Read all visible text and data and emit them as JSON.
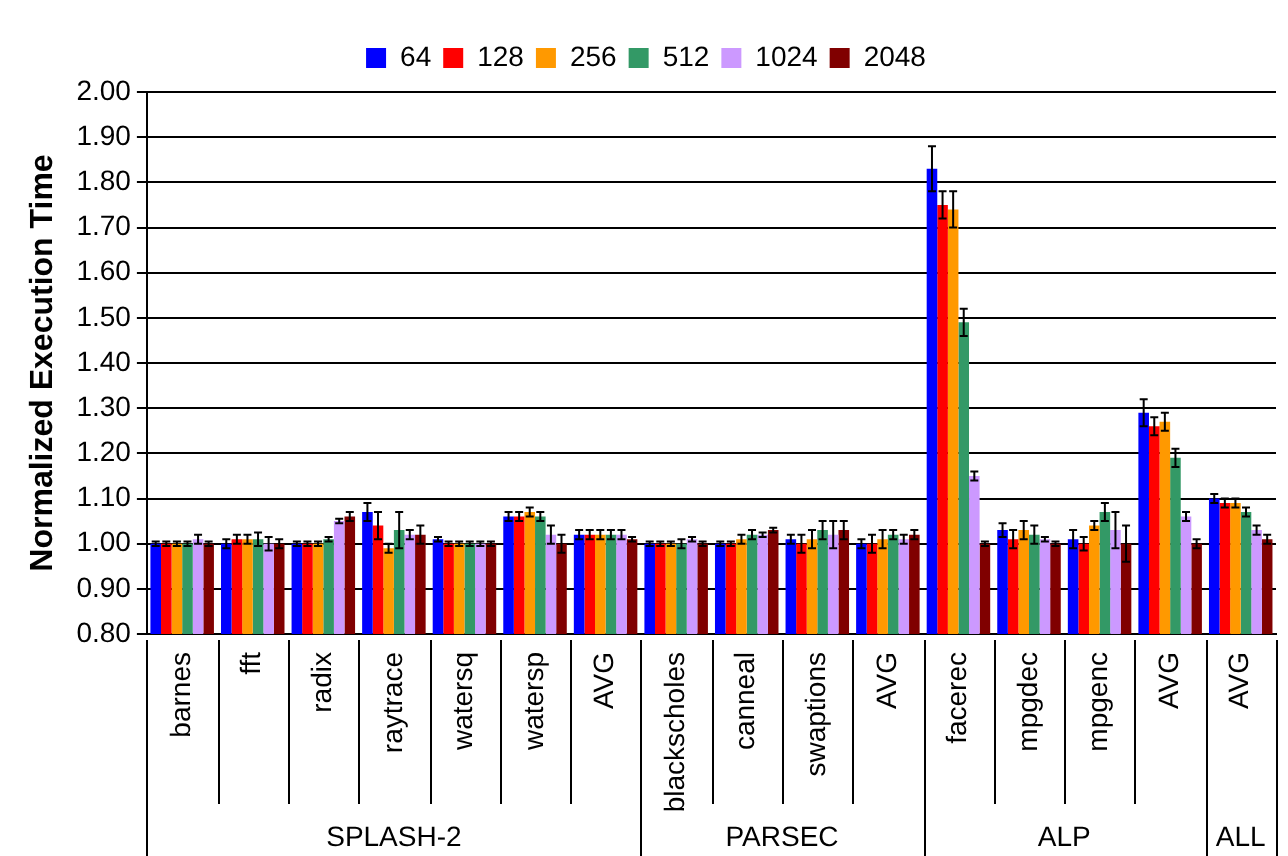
{
  "chart_data": {
    "type": "bar",
    "ylabel": "Normalized Execution Time",
    "categories": [
      "barnes",
      "fft",
      "radix",
      "raytrace",
      "watersq",
      "watersp",
      "AVG",
      "blackscholes",
      "canneal",
      "swaptions",
      "AVG",
      "facerec",
      "mpgdec",
      "mpgenc",
      "AVG",
      "AVG"
    ],
    "series": [
      {
        "name": "64",
        "color": "#0000ff",
        "values": [
          1.0,
          1.0,
          1.0,
          1.07,
          1.01,
          1.06,
          1.02,
          1.0,
          1.0,
          1.01,
          1.0,
          1.83,
          1.03,
          1.01,
          1.29,
          1.1
        ],
        "errors": [
          0.005,
          0.01,
          0.005,
          0.02,
          0.005,
          0.01,
          0.01,
          0.005,
          0.005,
          0.01,
          0.01,
          0.05,
          0.015,
          0.02,
          0.03,
          0.01
        ]
      },
      {
        "name": "128",
        "color": "#ff0000",
        "values": [
          1.0,
          1.01,
          1.0,
          1.04,
          1.0,
          1.06,
          1.02,
          1.0,
          1.0,
          1.0,
          1.0,
          1.75,
          1.01,
          1.0,
          1.26,
          1.09
        ],
        "errors": [
          0.005,
          0.01,
          0.005,
          0.03,
          0.005,
          0.01,
          0.01,
          0.005,
          0.005,
          0.02,
          0.02,
          0.03,
          0.02,
          0.015,
          0.02,
          0.01
        ]
      },
      {
        "name": "256",
        "color": "#ff9900",
        "values": [
          1.0,
          1.01,
          1.0,
          0.99,
          1.0,
          1.07,
          1.02,
          1.0,
          1.01,
          1.01,
          1.01,
          1.74,
          1.03,
          1.04,
          1.27,
          1.09
        ],
        "errors": [
          0.005,
          0.01,
          0.005,
          0.01,
          0.005,
          0.01,
          0.01,
          0.005,
          0.01,
          0.02,
          0.02,
          0.04,
          0.02,
          0.01,
          0.02,
          0.01
        ]
      },
      {
        "name": "512",
        "color": "#339966",
        "values": [
          1.0,
          1.01,
          1.01,
          1.03,
          1.0,
          1.06,
          1.02,
          1.0,
          1.02,
          1.03,
          1.02,
          1.49,
          1.02,
          1.07,
          1.19,
          1.07
        ],
        "errors": [
          0.005,
          0.015,
          0.005,
          0.04,
          0.005,
          0.01,
          0.01,
          0.01,
          0.01,
          0.02,
          0.01,
          0.03,
          0.02,
          0.02,
          0.02,
          0.01
        ]
      },
      {
        "name": "1024",
        "color": "#cc99ff",
        "values": [
          1.01,
          1.0,
          1.05,
          1.02,
          1.0,
          1.02,
          1.02,
          1.01,
          1.02,
          1.02,
          1.01,
          1.15,
          1.01,
          1.03,
          1.06,
          1.03
        ],
        "errors": [
          0.01,
          0.015,
          0.005,
          0.01,
          0.005,
          0.02,
          0.01,
          0.005,
          0.005,
          0.03,
          0.01,
          0.01,
          0.005,
          0.04,
          0.01,
          0.01
        ]
      },
      {
        "name": "2048",
        "color": "#800000",
        "values": [
          1.0,
          1.0,
          1.06,
          1.02,
          1.0,
          1.0,
          1.01,
          1.0,
          1.03,
          1.03,
          1.02,
          1.0,
          1.0,
          1.0,
          1.0,
          1.01
        ],
        "errors": [
          0.005,
          0.01,
          0.01,
          0.02,
          0.005,
          0.02,
          0.005,
          0.005,
          0.005,
          0.02,
          0.01,
          0.005,
          0.005,
          0.04,
          0.01,
          0.01
        ]
      }
    ],
    "ylim": [
      0.8,
      2.0
    ],
    "yticks": [
      {
        "value": 0.8,
        "label": "0.80"
      },
      {
        "value": 0.9,
        "label": "0.90"
      },
      {
        "value": 1.0,
        "label": "1.00"
      },
      {
        "value": 1.1,
        "label": "1.10"
      },
      {
        "value": 1.2,
        "label": "1.20"
      },
      {
        "value": 1.3,
        "label": "1.30"
      },
      {
        "value": 1.4,
        "label": "1.40"
      },
      {
        "value": 1.5,
        "label": "1.50"
      },
      {
        "value": 1.6,
        "label": "1.60"
      },
      {
        "value": 1.7,
        "label": "1.70"
      },
      {
        "value": 1.8,
        "label": "1.80"
      },
      {
        "value": 1.9,
        "label": "1.90"
      },
      {
        "value": 2.0,
        "label": "2.00"
      }
    ],
    "annotations": [
      "SPLASH-2",
      "PARSEC",
      "ALP",
      "ALL"
    ],
    "grid": "y",
    "legend": "top"
  }
}
